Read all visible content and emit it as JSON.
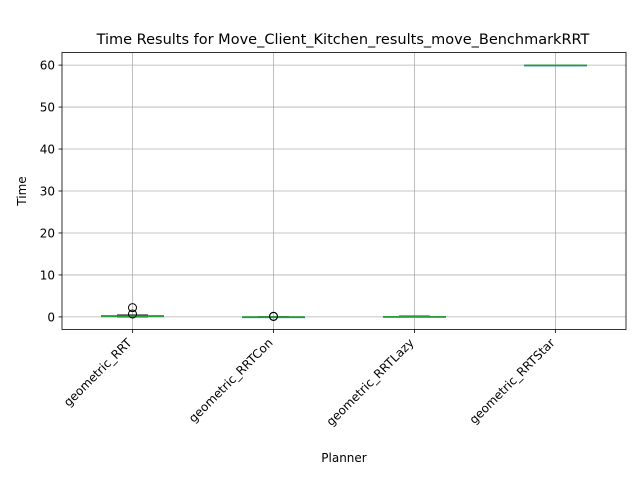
{
  "chart_data": {
    "type": "boxplot",
    "title": "Time Results for Move_Client_Kitchen_results_move_BenchmarkRRT",
    "xlabel": "Planner",
    "ylabel": "Time",
    "ylim": [
      -3,
      63
    ],
    "yticks": [
      0,
      10,
      20,
      30,
      40,
      50,
      60
    ],
    "grid": true,
    "x_tick_rotation_deg": 45,
    "colors": {
      "box": "#1f77b4",
      "median": "#2ca02c",
      "whisker": "#000000",
      "grid": "#b0b0b0"
    },
    "categories": [
      "geometric_RRT",
      "geometric_RRTCon",
      "geometric_RRTLazy",
      "geometric_RRTStar"
    ],
    "boxes": [
      {
        "label": "geometric_RRT",
        "whislo": 0.0,
        "q1": 0.05,
        "med": 0.15,
        "q3": 0.3,
        "whishi": 0.45,
        "fliers": [
          0.7,
          2.2
        ]
      },
      {
        "label": "geometric_RRTCon",
        "whislo": 0.0,
        "q1": 0.0,
        "med": 0.01,
        "q3": 0.02,
        "whishi": 0.04,
        "fliers": [
          0.1,
          0.15
        ]
      },
      {
        "label": "geometric_RRTLazy",
        "whislo": 0.0,
        "q1": 0.02,
        "med": 0.05,
        "q3": 0.1,
        "whishi": 0.2,
        "fliers": []
      },
      {
        "label": "geometric_RRTStar",
        "whislo": 60.0,
        "q1": 60.0,
        "med": 60.0,
        "q3": 60.0,
        "whishi": 60.0,
        "fliers": []
      }
    ]
  }
}
